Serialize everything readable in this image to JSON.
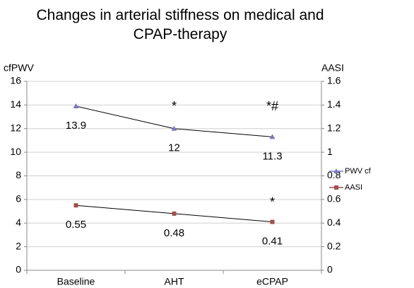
{
  "chart_data": {
    "type": "line",
    "title": "Changes in arterial stiffness on medical and CPAP-therapy",
    "y_label": "cfPWV",
    "y2_label": "AASI",
    "categories": [
      "Baseline",
      "AHT",
      "eCPAP"
    ],
    "series": [
      {
        "name": "PWV cf",
        "color": "#7b78c0",
        "marker": "triangle",
        "values": [
          13.9,
          12,
          11.3
        ]
      },
      {
        "name": "AASI",
        "color": "#a0504e",
        "marker": "square",
        "axis": "y2",
        "values": [
          0.55,
          0.48,
          0.41
        ]
      }
    ],
    "annotations": [
      "*",
      "*#",
      "*"
    ],
    "ylim": [
      0,
      16
    ],
    "yticks": [
      0,
      2,
      4,
      6,
      8,
      10,
      12,
      14,
      16
    ],
    "y2lim": [
      0,
      1.6
    ],
    "y2ticks": [
      0,
      0.2,
      0.4,
      0.6,
      0.8,
      1,
      1.2,
      1.4,
      1.6
    ],
    "grid": true,
    "legend": "right"
  }
}
